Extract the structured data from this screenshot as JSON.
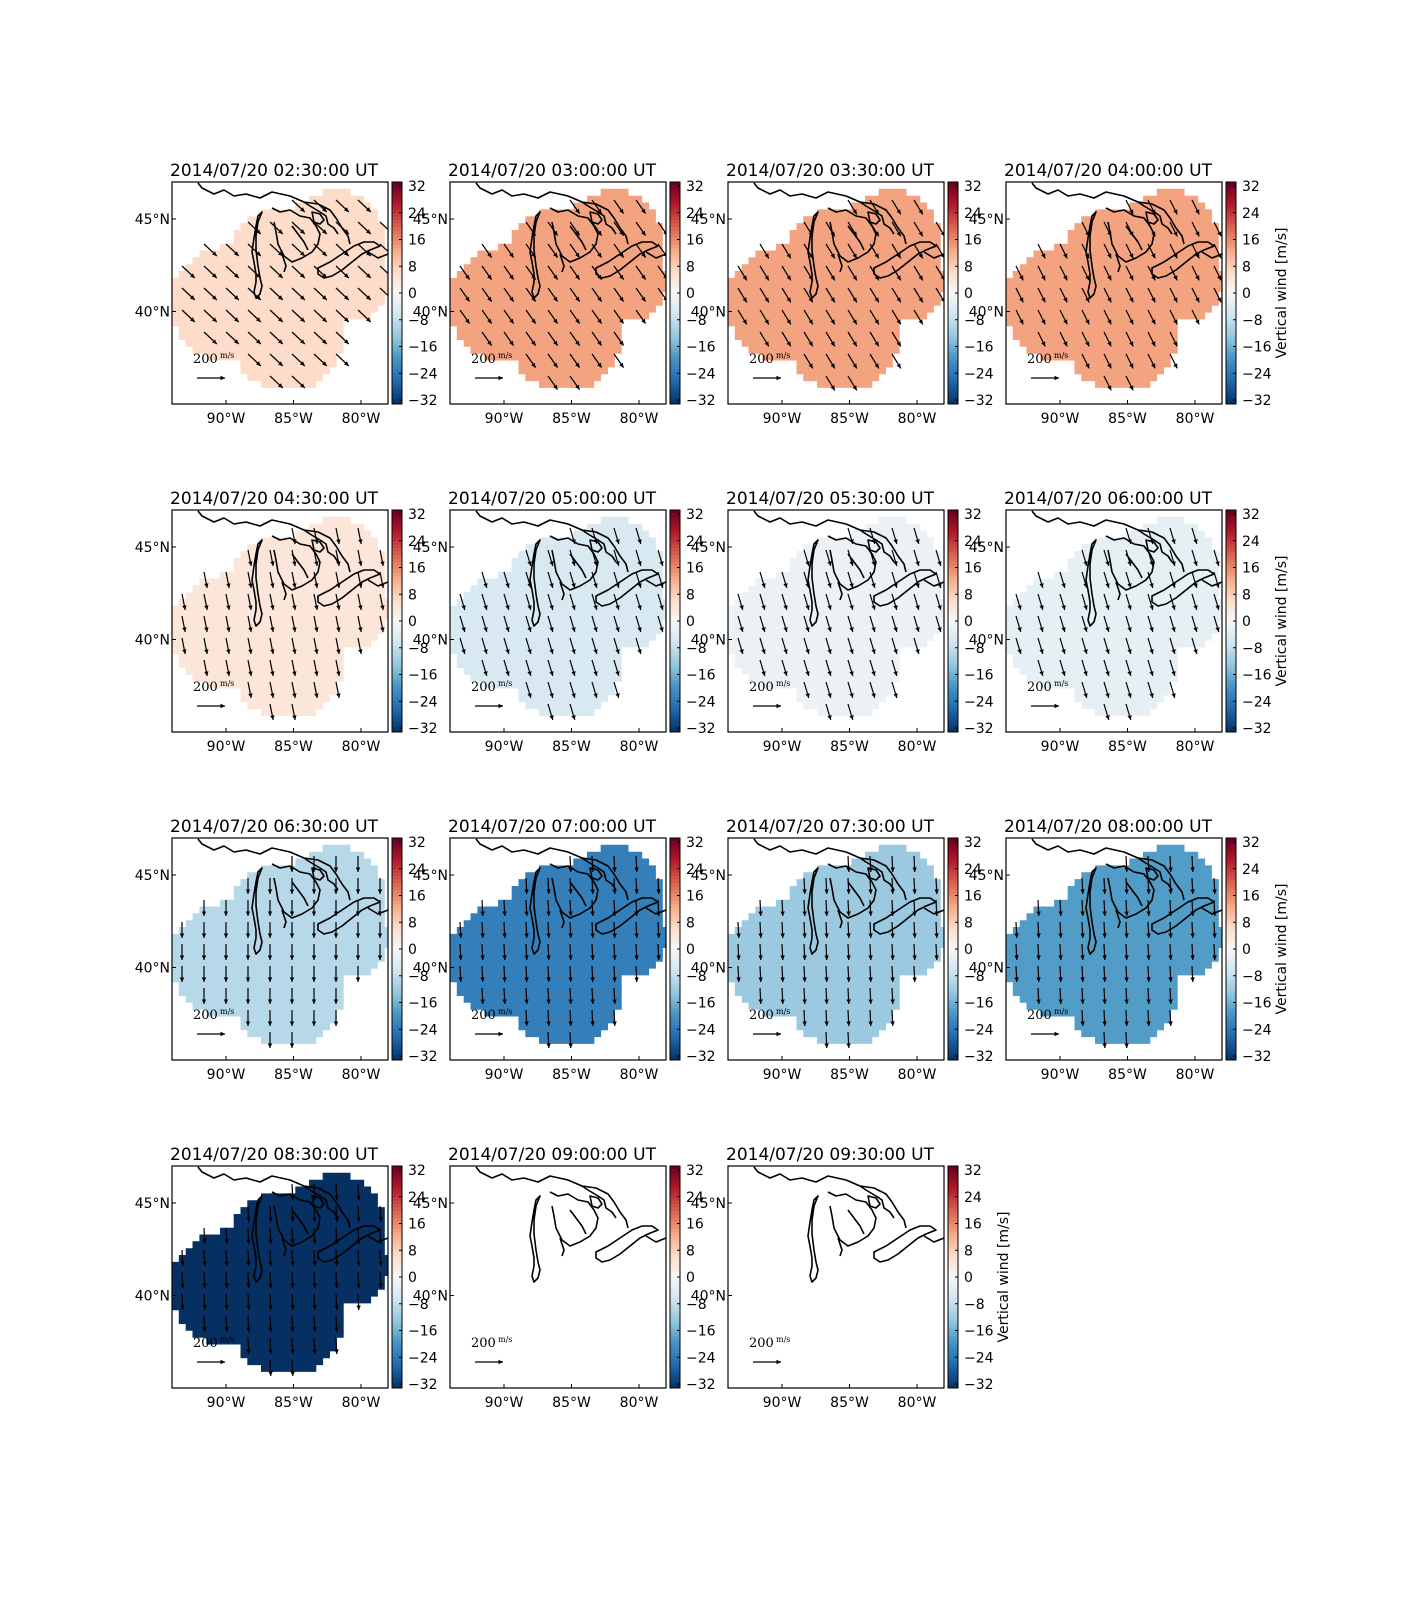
{
  "chart_data": {
    "type": "heatmap",
    "figure_kind": "small-multiples map grid with quiver arrows and colorbars",
    "colormap": "RdBu_r",
    "color_range": [
      -32,
      32
    ],
    "colorbar_ticks": [
      "32",
      "24",
      "16",
      "8",
      "0",
      "−8",
      "−16",
      "−24",
      "−32"
    ],
    "colorbar_label": "Vertical wind [m/s]",
    "x_ticks": [
      "90°W",
      "85°W",
      "80°W"
    ],
    "x_tick_values": [
      -90,
      -85,
      -80
    ],
    "y_ticks": [
      "45°N",
      "40°N"
    ],
    "y_tick_values": [
      45,
      40
    ],
    "lon_range": [
      -94,
      -78
    ],
    "lat_range": [
      35,
      47
    ],
    "arrow_scale_label": "200",
    "arrow_scale_unit": "m/s",
    "panels": [
      {
        "title": "2014/07/20 02:30:00 UT",
        "value": 6,
        "wind_u": 0.8,
        "wind_v": -0.75,
        "has_data": true,
        "colorbar_label": false
      },
      {
        "title": "2014/07/20 03:00:00 UT",
        "value": 13,
        "wind_u": 0.6,
        "wind_v": -0.85,
        "has_data": true,
        "colorbar_label": false
      },
      {
        "title": "2014/07/20 03:30:00 UT",
        "value": 13,
        "wind_u": 0.55,
        "wind_v": -0.9,
        "has_data": true,
        "colorbar_label": false
      },
      {
        "title": "2014/07/20 04:00:00 UT",
        "value": 13,
        "wind_u": 0.45,
        "wind_v": -0.9,
        "has_data": true,
        "colorbar_label": true
      },
      {
        "title": "2014/07/20 04:30:00 UT",
        "value": 4,
        "wind_u": 0.2,
        "wind_v": -1.0,
        "has_data": true,
        "colorbar_label": false
      },
      {
        "title": "2014/07/20 05:00:00 UT",
        "value": -5,
        "wind_u": 0.3,
        "wind_v": -1.0,
        "has_data": true,
        "colorbar_label": false
      },
      {
        "title": "2014/07/20 05:30:00 UT",
        "value": -2,
        "wind_u": 0.3,
        "wind_v": -1.0,
        "has_data": true,
        "colorbar_label": false
      },
      {
        "title": "2014/07/20 06:00:00 UT",
        "value": -3,
        "wind_u": 0.3,
        "wind_v": -1.0,
        "has_data": true,
        "colorbar_label": true
      },
      {
        "title": "2014/07/20 06:30:00 UT",
        "value": -9,
        "wind_u": 0.0,
        "wind_v": -1.0,
        "has_data": true,
        "colorbar_label": false
      },
      {
        "title": "2014/07/20 07:00:00 UT",
        "value": -22,
        "wind_u": 0.05,
        "wind_v": -1.0,
        "has_data": true,
        "colorbar_label": false
      },
      {
        "title": "2014/07/20 07:30:00 UT",
        "value": -12,
        "wind_u": 0.05,
        "wind_v": -1.0,
        "has_data": true,
        "colorbar_label": false
      },
      {
        "title": "2014/07/20 08:00:00 UT",
        "value": -18,
        "wind_u": 0.05,
        "wind_v": -1.0,
        "has_data": true,
        "colorbar_label": true
      },
      {
        "title": "2014/07/20 08:30:00 UT",
        "value": -32,
        "wind_u": 0.05,
        "wind_v": -1.0,
        "has_data": true,
        "colorbar_label": false
      },
      {
        "title": "2014/07/20 09:00:00 UT",
        "value": null,
        "wind_u": 0,
        "wind_v": 0,
        "has_data": false,
        "colorbar_label": false
      },
      {
        "title": "2014/07/20 09:30:00 UT",
        "value": null,
        "wind_u": 0,
        "wind_v": 0,
        "has_data": false,
        "colorbar_label": true
      }
    ]
  }
}
